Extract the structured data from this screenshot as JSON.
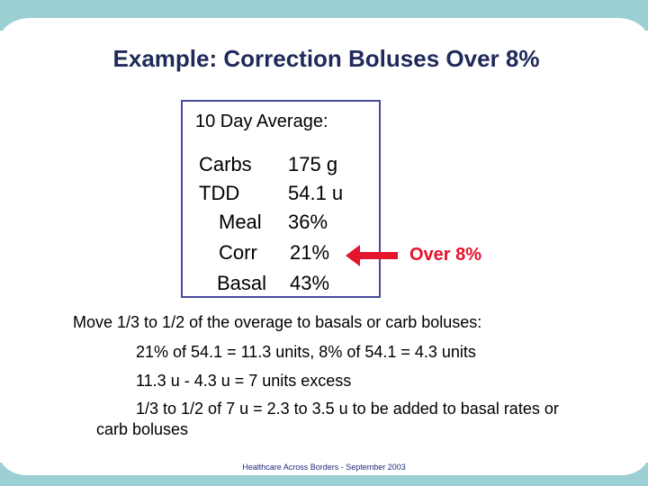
{
  "slide": {
    "title": "Example: Correction Boluses Over 8%",
    "average_box": {
      "heading": "10 Day Average:",
      "rows": [
        {
          "label": "Carbs",
          "value": "175 g"
        },
        {
          "label": "TDD",
          "value": "54.1 u"
        },
        {
          "label": "Meal",
          "value": "36%"
        },
        {
          "label": "Corr",
          "value": "21%"
        },
        {
          "label": "Basal",
          "value": "43%"
        }
      ]
    },
    "callout": "Over 8%",
    "body": [
      "Move 1/3 to 1/2 of the overage to basals or carb boluses:",
      "21% of 54.1 = 11.3 units, 8% of 54.1 = 4.3 units",
      "11.3 u - 4.3 u = 7 units excess",
      "1/3 to 1/2 of 7 u = 2.3 to 3.5 u to be added to basal rates or",
      "carb boluses"
    ],
    "footer": "Healthcare Across Borders  -  September 2003",
    "colors": {
      "band": "#9ccfd3",
      "title": "#1f2a5a",
      "box_border": "#4a4a9a",
      "accent": "#e3142c"
    }
  }
}
